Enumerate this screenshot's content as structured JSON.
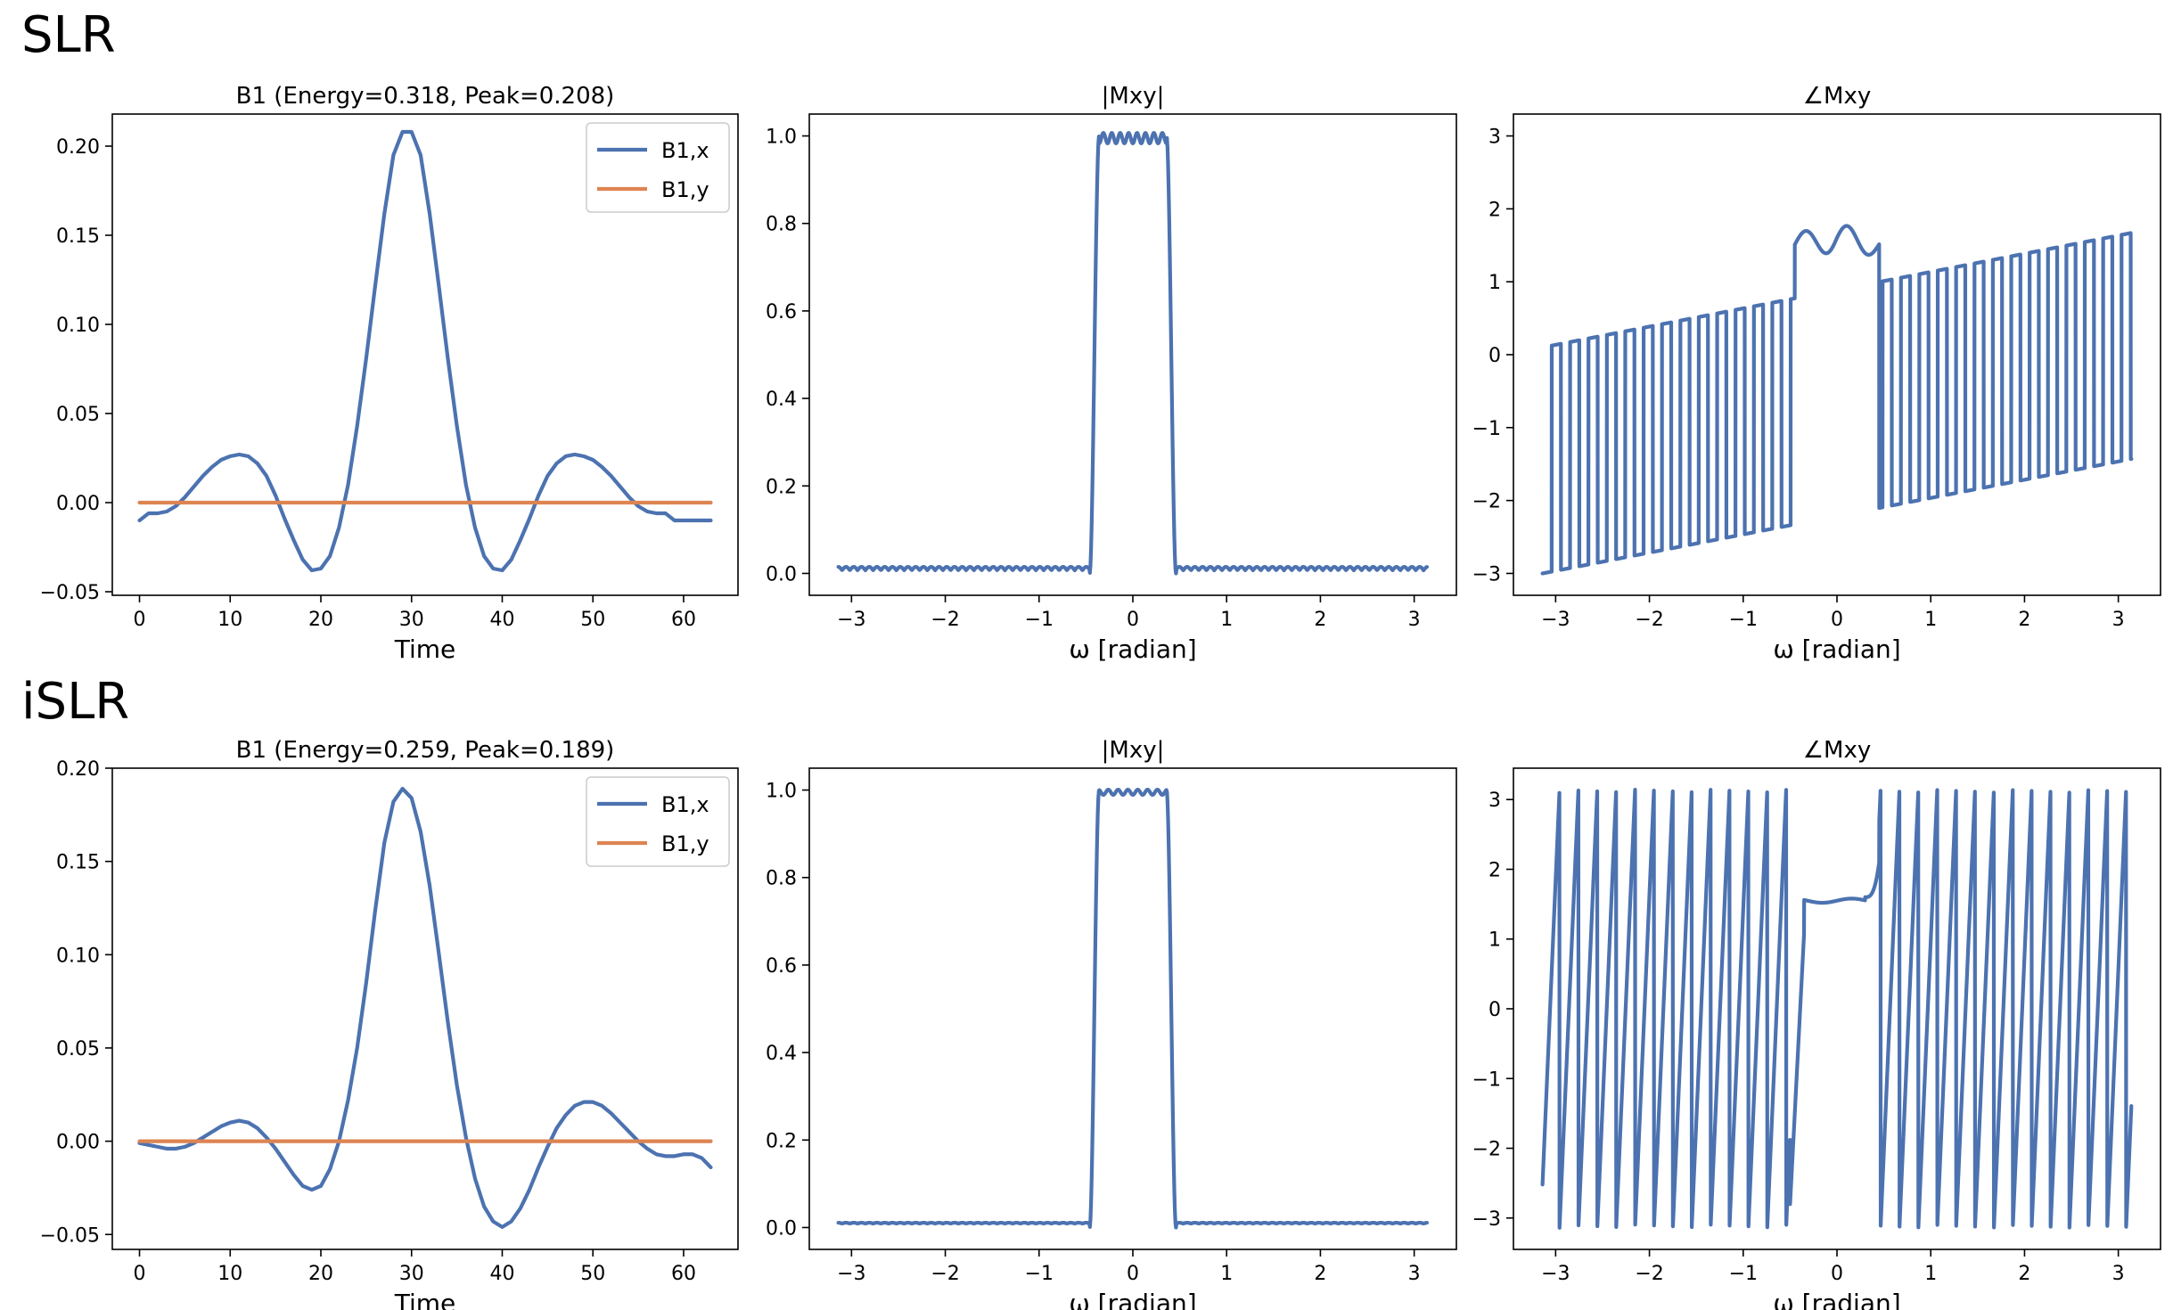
{
  "rows": [
    {
      "label": "SLR",
      "panels": [
        {
          "title": "B1 (Energy=0.318, Peak=0.208)",
          "xlabel": "Time",
          "xlim": [
            -3,
            66
          ],
          "ylim": [
            -0.052,
            0.218
          ],
          "xticks": [
            0,
            10,
            20,
            30,
            40,
            50,
            60
          ],
          "yticks": [
            -0.05,
            0.0,
            0.05,
            0.1,
            0.15,
            0.2
          ],
          "ytick_decimals": 2,
          "legend": true,
          "series": [
            {
              "name": "B1,x",
              "color": "#4c72b0",
              "x": [
                0,
                1,
                2,
                3,
                4,
                5,
                6,
                7,
                8,
                9,
                10,
                11,
                12,
                13,
                14,
                15,
                16,
                17,
                18,
                19,
                20,
                21,
                22,
                23,
                24,
                25,
                26,
                27,
                28,
                29,
                30,
                31,
                32,
                33,
                34,
                35,
                36,
                37,
                38,
                39,
                40,
                41,
                42,
                43,
                44,
                45,
                46,
                47,
                48,
                49,
                50,
                51,
                52,
                53,
                54,
                55,
                56,
                57,
                58,
                59,
                60,
                61,
                62,
                63
              ],
              "y": [
                -0.01,
                -0.006,
                -0.006,
                -0.005,
                -0.002,
                0.003,
                0.009,
                0.015,
                0.02,
                0.024,
                0.026,
                0.027,
                0.026,
                0.022,
                0.015,
                0.004,
                -0.009,
                -0.021,
                -0.032,
                -0.038,
                -0.037,
                -0.03,
                -0.014,
                0.01,
                0.043,
                0.081,
                0.122,
                0.162,
                0.195,
                0.208,
                0.208,
                0.195,
                0.162,
                0.122,
                0.081,
                0.043,
                0.01,
                -0.014,
                -0.03,
                -0.037,
                -0.038,
                -0.032,
                -0.021,
                -0.009,
                0.004,
                0.015,
                0.022,
                0.026,
                0.027,
                0.026,
                0.024,
                0.02,
                0.015,
                0.009,
                0.003,
                -0.002,
                -0.005,
                -0.006,
                -0.006,
                -0.01,
                -0.01,
                -0.01,
                -0.01,
                -0.01
              ]
            },
            {
              "name": "B1,y",
              "color": "#dd8452",
              "x": [
                0,
                63
              ],
              "y": [
                0,
                0
              ]
            }
          ]
        },
        {
          "title": "|Mxy|",
          "xlabel": "ω [radian]",
          "xlim": [
            -3.45,
            3.45
          ],
          "ylim": [
            -0.05,
            1.05
          ],
          "xticks": [
            -3,
            -2,
            -1,
            0,
            1,
            2,
            3
          ],
          "yticks": [
            0.0,
            0.2,
            0.4,
            0.6,
            0.8,
            1.0
          ],
          "ytick_decimals": 1,
          "legend": false,
          "series": [
            {
              "name": "|Mxy|",
              "color": "#4c72b0",
              "generator": "slr_mag"
            }
          ]
        },
        {
          "title": "∠Mxy",
          "xlabel": "ω [radian]",
          "xlim": [
            -3.45,
            3.45
          ],
          "ylim": [
            -3.3,
            3.3
          ],
          "xticks": [
            -3,
            -2,
            -1,
            0,
            1,
            2,
            3
          ],
          "yticks": [
            -3,
            -2,
            -1,
            0,
            1,
            2,
            3
          ],
          "ytick_decimals": 0,
          "legend": false,
          "series": [
            {
              "name": "∠Mxy",
              "color": "#4c72b0",
              "generator": "slr_phase"
            }
          ]
        }
      ]
    },
    {
      "label": "iSLR",
      "panels": [
        {
          "title": "B1 (Energy=0.259, Peak=0.189)",
          "xlabel": "Time",
          "xlim": [
            -3,
            66
          ],
          "ylim": [
            -0.058,
            0.2
          ],
          "xticks": [
            0,
            10,
            20,
            30,
            40,
            50,
            60
          ],
          "yticks": [
            -0.05,
            0.0,
            0.05,
            0.1,
            0.15,
            0.2
          ],
          "ytick_decimals": 2,
          "legend": true,
          "series": [
            {
              "name": "B1,x",
              "color": "#4c72b0",
              "x": [
                0,
                1,
                2,
                3,
                4,
                5,
                6,
                7,
                8,
                9,
                10,
                11,
                12,
                13,
                14,
                15,
                16,
                17,
                18,
                19,
                20,
                21,
                22,
                23,
                24,
                25,
                26,
                27,
                28,
                29,
                30,
                31,
                32,
                33,
                34,
                35,
                36,
                37,
                38,
                39,
                40,
                41,
                42,
                43,
                44,
                45,
                46,
                47,
                48,
                49,
                50,
                51,
                52,
                53,
                54,
                55,
                56,
                57,
                58,
                59,
                60,
                61,
                62,
                63
              ],
              "y": [
                -0.001,
                -0.002,
                -0.003,
                -0.004,
                -0.004,
                -0.003,
                -0.001,
                0.002,
                0.005,
                0.008,
                0.01,
                0.011,
                0.01,
                0.007,
                0.002,
                -0.004,
                -0.011,
                -0.018,
                -0.024,
                -0.026,
                -0.024,
                -0.015,
                0.0,
                0.022,
                0.05,
                0.085,
                0.124,
                0.16,
                0.182,
                0.189,
                0.184,
                0.166,
                0.137,
                0.101,
                0.064,
                0.03,
                0.002,
                -0.02,
                -0.035,
                -0.043,
                -0.046,
                -0.043,
                -0.036,
                -0.026,
                -0.014,
                -0.003,
                0.007,
                0.014,
                0.019,
                0.021,
                0.021,
                0.019,
                0.015,
                0.01,
                0.005,
                0.0,
                -0.004,
                -0.007,
                -0.008,
                -0.008,
                -0.007,
                -0.007,
                -0.009,
                -0.014
              ]
            },
            {
              "name": "B1,y",
              "color": "#dd8452",
              "x": [
                0,
                63
              ],
              "y": [
                0,
                0
              ]
            }
          ]
        },
        {
          "title": "|Mxy|",
          "xlabel": "ω [radian]",
          "xlim": [
            -3.45,
            3.45
          ],
          "ylim": [
            -0.05,
            1.05
          ],
          "xticks": [
            -3,
            -2,
            -1,
            0,
            1,
            2,
            3
          ],
          "yticks": [
            0.0,
            0.2,
            0.4,
            0.6,
            0.8,
            1.0
          ],
          "ytick_decimals": 1,
          "legend": false,
          "series": [
            {
              "name": "|Mxy|",
              "color": "#4c72b0",
              "generator": "islr_mag"
            }
          ]
        },
        {
          "title": "∠Mxy",
          "xlabel": "ω [radian]",
          "xlim": [
            -3.45,
            3.45
          ],
          "ylim": [
            -3.45,
            3.45
          ],
          "xticks": [
            -3,
            -2,
            -1,
            0,
            1,
            2,
            3
          ],
          "yticks": [
            -3,
            -2,
            -1,
            0,
            1,
            2,
            3
          ],
          "ytick_decimals": 0,
          "legend": false,
          "series": [
            {
              "name": "∠Mxy",
              "color": "#4c72b0",
              "generator": "islr_phase"
            }
          ]
        }
      ]
    }
  ],
  "chart_data": [
    {
      "type": "line",
      "title": "B1 (Energy=0.318, Peak=0.208)",
      "xlabel": "Time",
      "ylabel": "",
      "row": "SLR",
      "series": [
        "B1,x",
        "B1,y"
      ],
      "xlim": [
        -3,
        66
      ],
      "ylim": [
        -0.052,
        0.218
      ]
    },
    {
      "type": "line",
      "title": "|Mxy|",
      "xlabel": "ω [radian]",
      "ylabel": "",
      "row": "SLR",
      "ylim": [
        -0.05,
        1.05
      ],
      "passband": [
        -0.45,
        0.45
      ],
      "passband_level": 1.0,
      "stopband_level": 0.01
    },
    {
      "type": "line",
      "title": "∠Mxy",
      "xlabel": "ω [radian]",
      "ylabel": "",
      "row": "SLR",
      "ylim": [
        -3.3,
        3.3
      ]
    },
    {
      "type": "line",
      "title": "B1 (Energy=0.259, Peak=0.189)",
      "xlabel": "Time",
      "ylabel": "",
      "row": "iSLR",
      "series": [
        "B1,x",
        "B1,y"
      ],
      "xlim": [
        -3,
        66
      ],
      "ylim": [
        -0.058,
        0.2
      ]
    },
    {
      "type": "line",
      "title": "|Mxy|",
      "xlabel": "ω [radian]",
      "ylabel": "",
      "row": "iSLR",
      "ylim": [
        -0.05,
        1.05
      ],
      "passband": [
        -0.45,
        0.45
      ],
      "passband_level": 1.0,
      "stopband_level": 0.01
    },
    {
      "type": "line",
      "title": "∠Mxy",
      "xlabel": "ω [radian]",
      "ylabel": "",
      "row": "iSLR",
      "ylim": [
        -3.45,
        3.45
      ]
    }
  ]
}
